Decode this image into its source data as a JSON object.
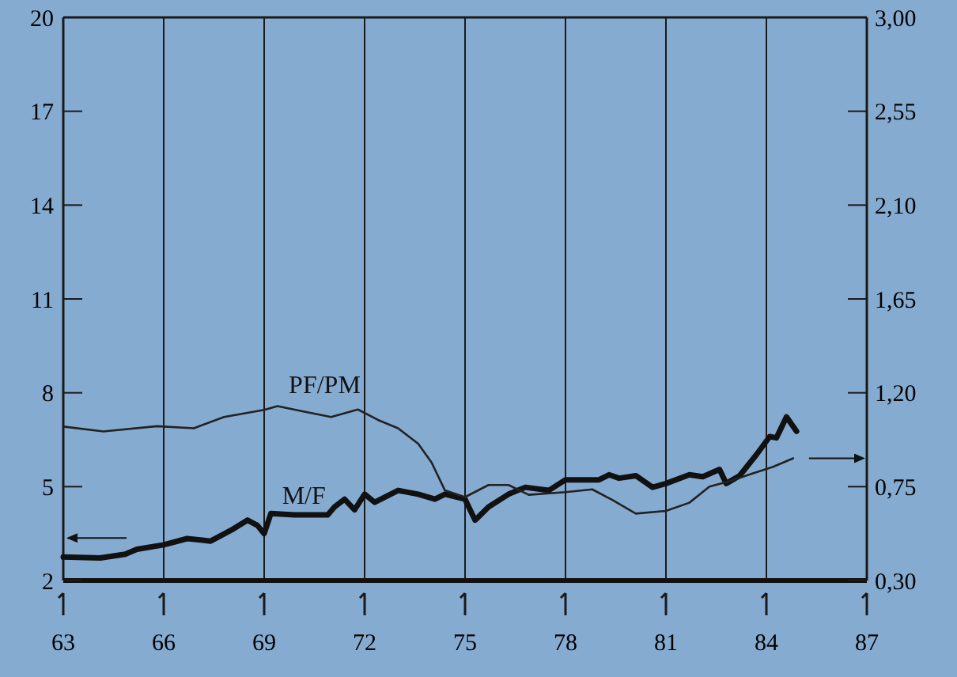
{
  "chart_data": {
    "type": "line",
    "xlim": [
      63,
      87
    ],
    "xticks": [
      63,
      66,
      69,
      72,
      75,
      78,
      81,
      84,
      87
    ],
    "ylim": [
      2,
      20
    ],
    "yticks": [
      2,
      5,
      8,
      11,
      14,
      17,
      20
    ],
    "y2lim": [
      0.3,
      3.0
    ],
    "y2ticks": [
      {
        "value": 0.3,
        "label": "0,30"
      },
      {
        "value": 0.75,
        "label": "0,75"
      },
      {
        "value": 1.2,
        "label": "1,20"
      },
      {
        "value": 1.65,
        "label": "1,65"
      },
      {
        "value": 2.1,
        "label": "2,10"
      },
      {
        "value": 2.55,
        "label": "2,55"
      },
      {
        "value": 3.0,
        "label": "3,00"
      }
    ],
    "grid": "x",
    "marker": "none",
    "series": [
      {
        "name": "M/F",
        "color": "#111111",
        "x": [
          63,
          64.1,
          64.85,
          65.2,
          66,
          66.7,
          67.4,
          68,
          68.5,
          68.8,
          69,
          69.2,
          69.9,
          70.9,
          71.1,
          71.4,
          71.7,
          72,
          72.3,
          73,
          73.6,
          74.1,
          74.4,
          75,
          75.3,
          75.7,
          76.3,
          76.8,
          77.5,
          78,
          79,
          79.3,
          79.6,
          80.1,
          80.6,
          81,
          81.7,
          82.1,
          82.6,
          82.8,
          83.2,
          83.7,
          84.1,
          84.3,
          84.6,
          84.9
        ],
        "values": [
          2.75,
          2.72,
          2.84,
          3.0,
          3.14,
          3.34,
          3.26,
          3.6,
          3.93,
          3.76,
          3.5,
          4.14,
          4.1,
          4.1,
          4.35,
          4.6,
          4.26,
          4.76,
          4.5,
          4.88,
          4.76,
          4.6,
          4.76,
          4.6,
          3.93,
          4.35,
          4.76,
          4.98,
          4.88,
          5.22,
          5.22,
          5.38,
          5.27,
          5.35,
          4.98,
          5.1,
          5.38,
          5.32,
          5.55,
          5.1,
          5.35,
          6.02,
          6.6,
          6.56,
          7.23,
          6.77
        ]
      },
      {
        "name": "PF/PM",
        "color": "#222222",
        "axis": "y2",
        "x": [
          63,
          64.2,
          65.8,
          66.9,
          67.8,
          69,
          69.4,
          70.2,
          71,
          71.8,
          72.4,
          73,
          73.6,
          74,
          74.4,
          75,
          75.7,
          76.3,
          76.9,
          78,
          78.8,
          79.4,
          80.1,
          81,
          81.7,
          82.3,
          82.9,
          83.6,
          84.2,
          84.8
        ],
        "values": [
          1.038,
          1.015,
          1.04,
          1.03,
          1.084,
          1.118,
          1.136,
          1.11,
          1.084,
          1.12,
          1.07,
          1.03,
          0.956,
          0.866,
          0.732,
          0.7,
          0.758,
          0.758,
          0.711,
          0.724,
          0.737,
          0.686,
          0.621,
          0.634,
          0.673,
          0.75,
          0.776,
          0.814,
          0.845,
          0.886
        ]
      }
    ]
  }
}
